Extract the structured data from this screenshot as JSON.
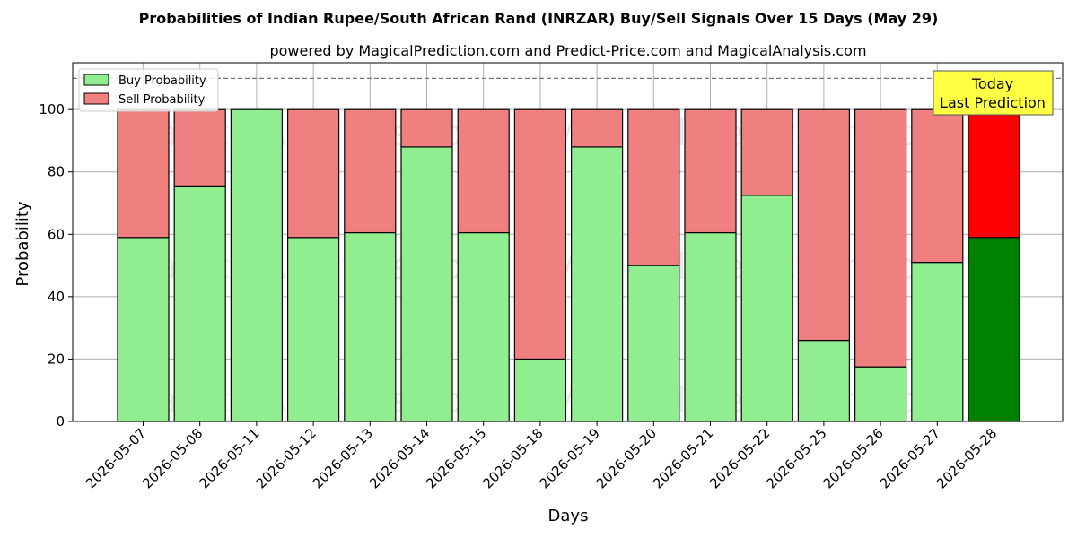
{
  "chart_data": {
    "type": "bar",
    "stacked": true,
    "title": "Probabilities of Indian Rupee/South African Rand (INRZAR) Buy/Sell Signals Over 15 Days (May 29)",
    "subtitle": "powered by MagicalPrediction.com and Predict-Price.com and MagicalAnalysis.com",
    "xlabel": "Days",
    "ylabel": "Probability",
    "ylim": [
      0,
      115
    ],
    "yticks": [
      0,
      20,
      40,
      60,
      80,
      100
    ],
    "grid": true,
    "legend_placement": "upper-left",
    "reference_line": 110,
    "categories": [
      "2026-05-07",
      "2026-05-08",
      "2026-05-11",
      "2026-05-12",
      "2026-05-13",
      "2026-05-14",
      "2026-05-15",
      "2026-05-18",
      "2026-05-19",
      "2026-05-20",
      "2026-05-21",
      "2026-05-22",
      "2026-05-25",
      "2026-05-26",
      "2026-05-27",
      "2026-05-28"
    ],
    "series": [
      {
        "name": "Buy Probability",
        "color": "#90ee90",
        "highlight_color": "#008000",
        "values": [
          59,
          75.5,
          100,
          59,
          60.5,
          88,
          60.5,
          20,
          88,
          50,
          60.5,
          72.5,
          26,
          17.5,
          51,
          59
        ]
      },
      {
        "name": "Sell Probability",
        "color": "#f08080",
        "highlight_color": "#ff0000",
        "values": [
          41,
          24.5,
          0,
          41,
          39.5,
          12,
          39.5,
          80,
          12,
          50,
          39.5,
          27.5,
          74,
          82.5,
          49,
          41
        ]
      }
    ],
    "highlight_index": 15,
    "annotation": {
      "line1": "Today",
      "line2": "Last Prediction",
      "color": "#ffff44"
    },
    "watermarks": [
      "MagicalAnalysis.com",
      "MagicalPrediction.com"
    ]
  }
}
